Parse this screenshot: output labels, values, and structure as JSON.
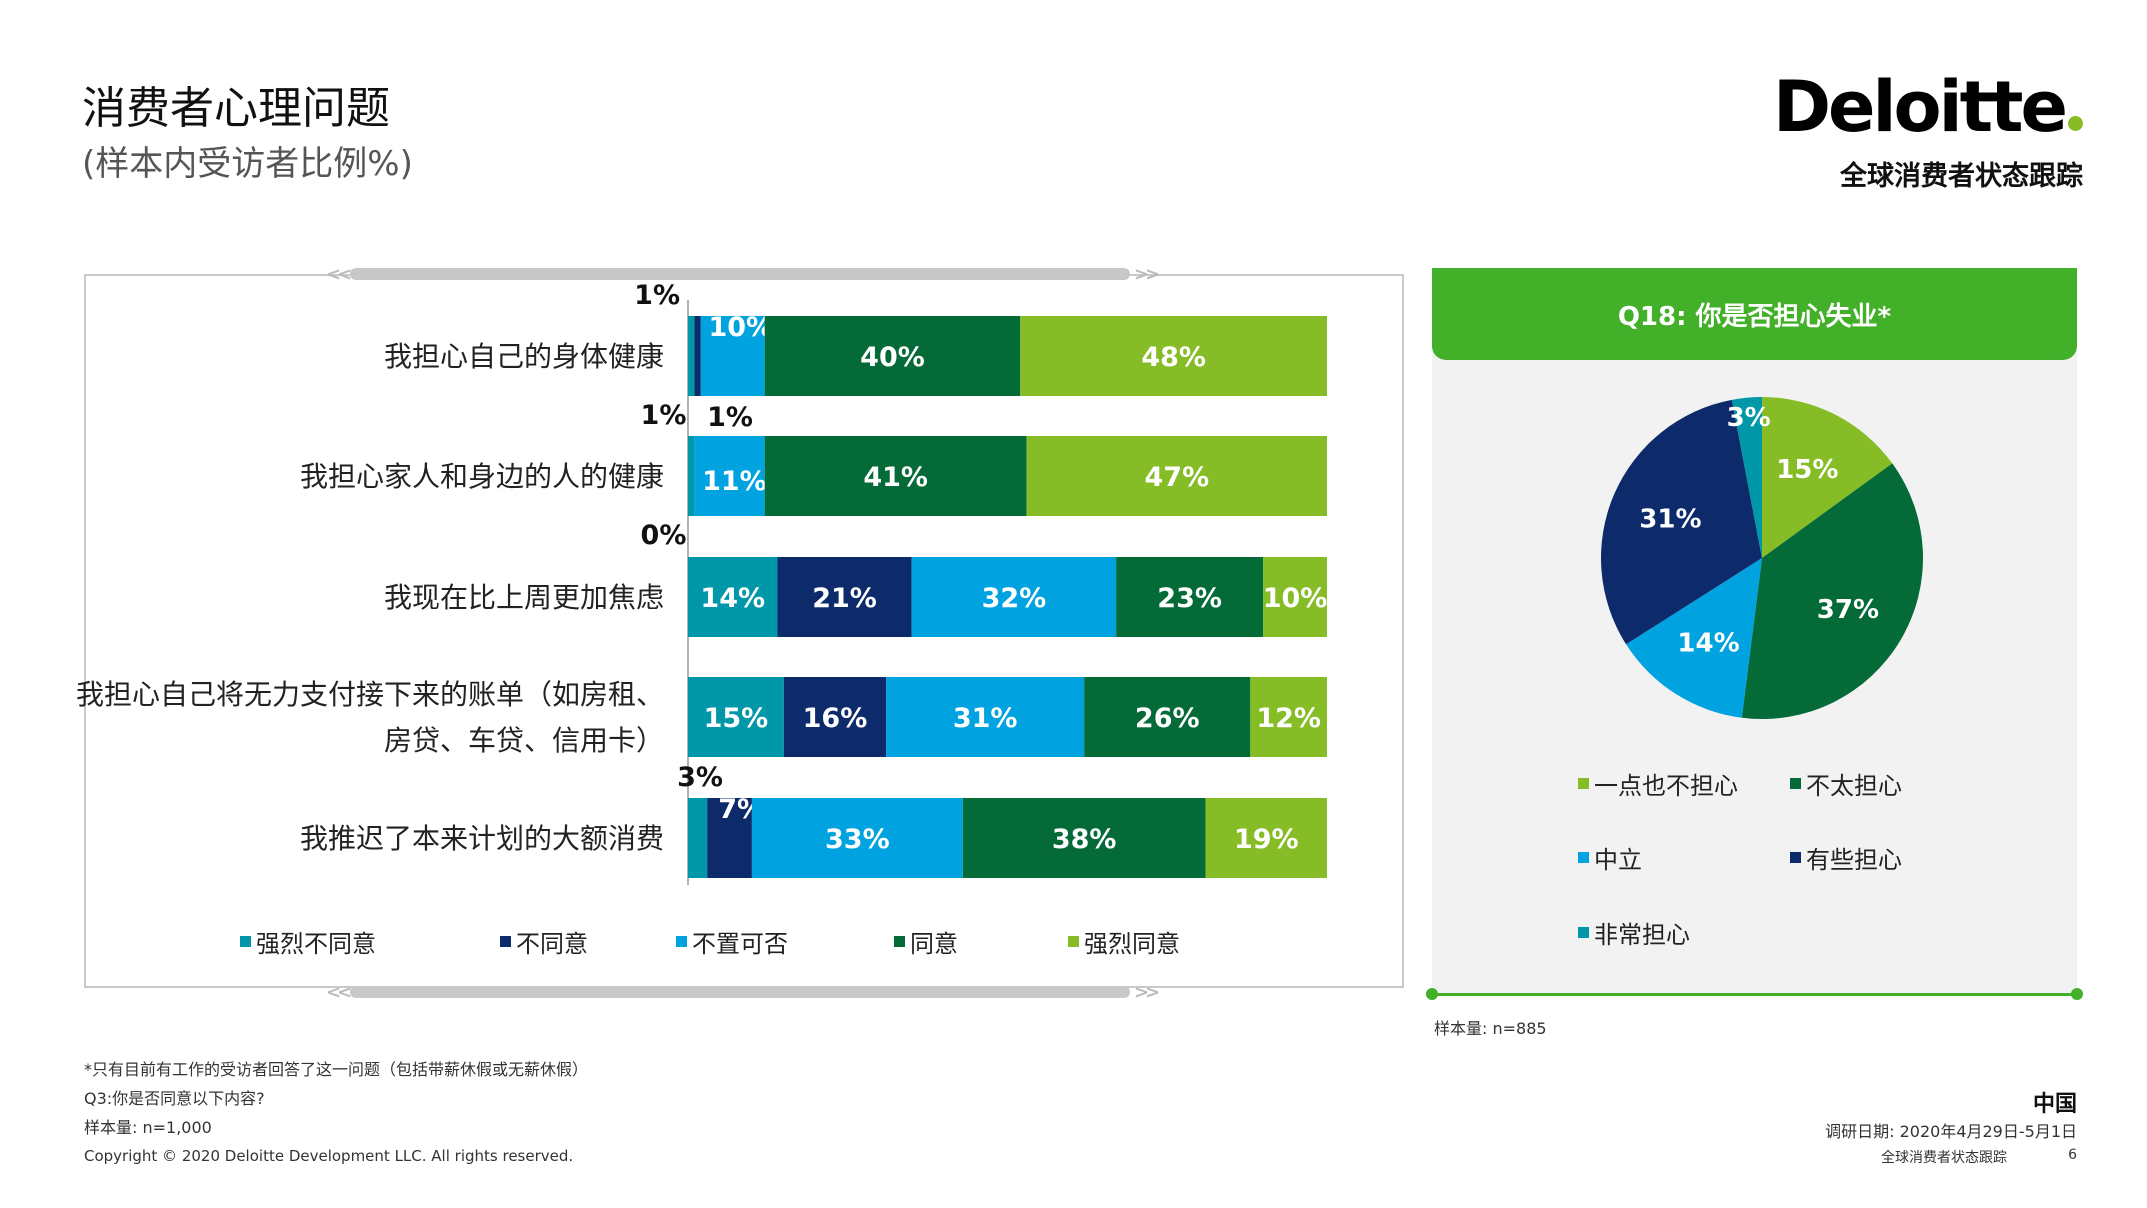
{
  "header": {
    "title": "消费者心理问题",
    "subtitle": "(样本内受访者比例%)",
    "logo_text": "Deloitte",
    "tracker_label": "全球消费者状态跟踪"
  },
  "colors": {
    "strongly_disagree": "#0097a9",
    "disagree": "#0d2a6b",
    "neutral": "#00a3e0",
    "agree": "#046a38",
    "strongly_agree": "#86bc25",
    "header_green": "#43b02a"
  },
  "chart_data": [
    {
      "type": "bar",
      "orientation": "horizontal-stacked",
      "categories": [
        "我担心自己的身体健康",
        "我担心家人和身边的人的健康",
        "我现在比上周更加焦虑",
        "我担心自己将无力支付接下来的账单（如房租、房贷、车贷、信用卡）",
        "我推迟了本来计划的大额消费"
      ],
      "category_lines": [
        [
          "我担心自己的身体健康"
        ],
        [
          "我担心家人和身边的人的健康"
        ],
        [
          "我现在比上周更加焦虑"
        ],
        [
          "我担心自己将无力支付接下来的账单（如房租、",
          "房贷、车贷、信用卡）"
        ],
        [
          "我推迟了本来计划的大额消费"
        ]
      ],
      "series": [
        {
          "name": "强烈不同意",
          "values": [
            1,
            1,
            14,
            15,
            3
          ]
        },
        {
          "name": "不同意",
          "values": [
            1,
            0,
            21,
            16,
            7
          ]
        },
        {
          "name": "不置可否",
          "values": [
            10,
            11,
            32,
            31,
            33
          ]
        },
        {
          "name": "同意",
          "values": [
            40,
            41,
            23,
            26,
            38
          ]
        },
        {
          "name": "强烈同意",
          "values": [
            48,
            47,
            10,
            12,
            19
          ]
        }
      ],
      "value_labels": [
        [
          "1%",
          "1%",
          "10%",
          "40%",
          "48%"
        ],
        [
          "1%",
          "0%",
          "11%",
          "41%",
          "47%"
        ],
        [
          "14%",
          "21%",
          "32%",
          "23%",
          "10%"
        ],
        [
          "15%",
          "16%",
          "31%",
          "26%",
          "12%"
        ],
        [
          "3%",
          "7%",
          "33%",
          "38%",
          "19%"
        ]
      ],
      "xlim": [
        0,
        100
      ],
      "legend_position": "bottom"
    },
    {
      "type": "pie",
      "title": "Q18: 你是否担心失业*",
      "slices": [
        {
          "name": "一点也不担心",
          "value": 15,
          "label": "15%"
        },
        {
          "name": "不太担心",
          "value": 37,
          "label": "37%"
        },
        {
          "name": "中立",
          "value": 14,
          "label": "14%"
        },
        {
          "name": "有些担心",
          "value": 31,
          "label": "31%"
        },
        {
          "name": "非常担心",
          "value": 3,
          "label": "3%"
        }
      ],
      "legend_position": "bottom"
    }
  ],
  "pie_sample": "样本量: n=885",
  "footnotes": {
    "asterisk": "*只有目前有工作的受访者回答了这一问题（包括带薪休假或无薪休假）",
    "question": "Q3:你是否同意以下内容?",
    "sample": "样本量: n=1,000",
    "copyright": "Copyright © 2020 Deloitte Development LLC. All rights reserved."
  },
  "footer": {
    "country": "中国",
    "survey_date": "调研日期: 2020年4月29日-5月1日",
    "tracker": "全球消费者状态跟踪",
    "page": "6"
  }
}
